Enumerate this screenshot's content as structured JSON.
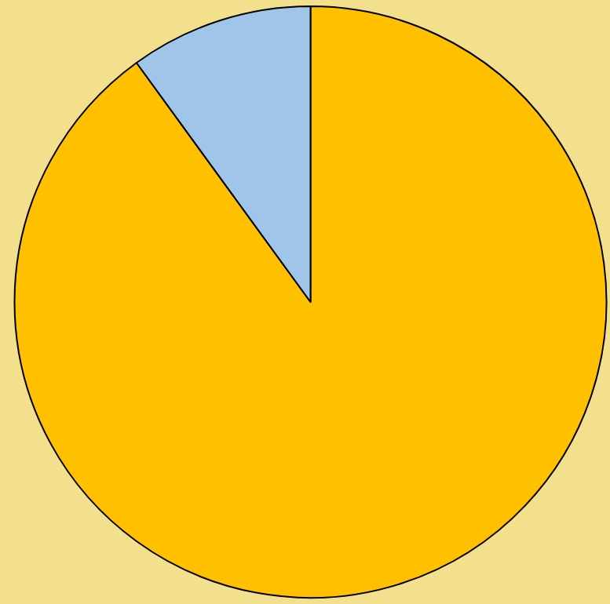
{
  "chart_data": {
    "type": "pie",
    "values": [
      90,
      10
    ],
    "colors": [
      "#ffc000",
      "#9fc5e8"
    ]
  }
}
